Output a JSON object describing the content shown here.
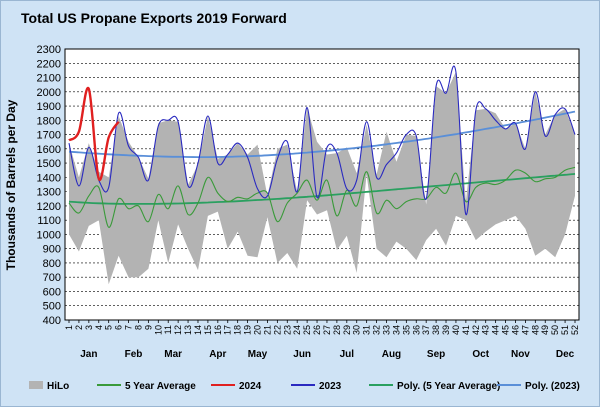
{
  "chart_data": {
    "type": "line",
    "title": "Total US Propane Exports 2019 Forward",
    "ylabel": "Thousands of Barrels per Day",
    "xlabel": "",
    "ylim": [
      400,
      2300
    ],
    "ystep": 100,
    "weeks": [
      1,
      2,
      3,
      4,
      5,
      6,
      7,
      8,
      9,
      10,
      11,
      12,
      13,
      14,
      15,
      16,
      17,
      18,
      19,
      20,
      21,
      22,
      23,
      24,
      25,
      26,
      27,
      28,
      29,
      30,
      31,
      32,
      33,
      34,
      35,
      36,
      37,
      38,
      39,
      40,
      41,
      42,
      43,
      44,
      45,
      46,
      47,
      48,
      49,
      50,
      51,
      52
    ],
    "months": [
      {
        "label": "Jan",
        "week": 3
      },
      {
        "label": "Feb",
        "week": 7.5
      },
      {
        "label": "Mar",
        "week": 11.5
      },
      {
        "label": "Apr",
        "week": 16
      },
      {
        "label": "May",
        "week": 20
      },
      {
        "label": "Jun",
        "week": 24.5
      },
      {
        "label": "Jul",
        "week": 29
      },
      {
        "label": "Aug",
        "week": 33.5
      },
      {
        "label": "Sep",
        "week": 38
      },
      {
        "label": "Oct",
        "week": 42.5
      },
      {
        "label": "Nov",
        "week": 46.5
      },
      {
        "label": "Dec",
        "week": 51
      }
    ],
    "hilo_high": [
      1640,
      1400,
      1640,
      1440,
      1400,
      1830,
      1650,
      1540,
      1390,
      1780,
      1800,
      1790,
      1350,
      1490,
      1830,
      1530,
      1560,
      1640,
      1560,
      1630,
      1270,
      1600,
      1630,
      1300,
      1890,
      1650,
      1560,
      1570,
      1610,
      1430,
      1770,
      1420,
      1720,
      1510,
      1700,
      1690,
      1210,
      2040,
      1990,
      2140,
      1230,
      1870,
      1880,
      1850,
      1740,
      1780,
      1600,
      2000,
      1700,
      1840,
      1880,
      1700
    ],
    "hilo_low": [
      1000,
      880,
      1060,
      1100,
      650,
      850,
      700,
      700,
      760,
      1100,
      800,
      1070,
      900,
      750,
      1130,
      1160,
      900,
      1020,
      850,
      840,
      1120,
      800,
      870,
      760,
      1240,
      1140,
      1170,
      890,
      990,
      730,
      1420,
      900,
      840,
      950,
      900,
      820,
      960,
      1040,
      920,
      1130,
      1100,
      960,
      1020,
      1070,
      1100,
      1130,
      1040,
      850,
      900,
      840,
      1000,
      1270
    ],
    "series": [
      {
        "name": "5 Year Average",
        "color": "#3a9a3a",
        "values": [
          1220,
          1150,
          1270,
          1330,
          1050,
          1250,
          1180,
          1200,
          1090,
          1280,
          1180,
          1340,
          1140,
          1220,
          1400,
          1290,
          1230,
          1260,
          1250,
          1290,
          1290,
          1090,
          1220,
          1290,
          1380,
          1240,
          1380,
          1130,
          1310,
          1200,
          1440,
          1150,
          1240,
          1180,
          1230,
          1250,
          1250,
          1330,
          1290,
          1430,
          1230,
          1330,
          1360,
          1350,
          1380,
          1450,
          1430,
          1370,
          1390,
          1400,
          1450,
          1470
        ]
      },
      {
        "name": "2024",
        "color": "#e02020",
        "values": [
          1660,
          1720,
          2020,
          1390,
          1680,
          1790
        ]
      },
      {
        "name": "2023",
        "color": "#2a2ac0",
        "values": [
          1640,
          1340,
          1610,
          1380,
          1330,
          1850,
          1620,
          1540,
          1380,
          1760,
          1800,
          1790,
          1340,
          1500,
          1830,
          1500,
          1560,
          1640,
          1540,
          1320,
          1270,
          1530,
          1650,
          1300,
          1890,
          1260,
          1610,
          1570,
          1320,
          1380,
          1790,
          1400,
          1490,
          1570,
          1700,
          1690,
          1250,
          2040,
          1990,
          2140,
          1140,
          1870,
          1880,
          1800,
          1740,
          1780,
          1600,
          2000,
          1690,
          1840,
          1880,
          1700
        ]
      },
      {
        "name": "Poly. (5 Year Average)",
        "color": "#2aa060",
        "values": [
          1230,
          1225,
          1221,
          1218,
          1216,
          1215,
          1214,
          1214,
          1214,
          1215,
          1216,
          1217,
          1219,
          1221,
          1224,
          1227,
          1230,
          1233,
          1237,
          1241,
          1245,
          1249,
          1254,
          1259,
          1264,
          1269,
          1274,
          1280,
          1286,
          1292,
          1298,
          1304,
          1310,
          1316,
          1322,
          1328,
          1334,
          1340,
          1346,
          1352,
          1358,
          1364,
          1370,
          1376,
          1382,
          1388,
          1394,
          1400,
          1406,
          1412,
          1418,
          1424
        ]
      },
      {
        "name": "Poly. (2023)",
        "color": "#5a8fd8",
        "values": [
          1580,
          1575,
          1570,
          1566,
          1562,
          1558,
          1555,
          1552,
          1549,
          1547,
          1545,
          1544,
          1543,
          1542,
          1542,
          1543,
          1544,
          1546,
          1548,
          1551,
          1555,
          1559,
          1563,
          1568,
          1574,
          1580,
          1586,
          1593,
          1600,
          1607,
          1615,
          1623,
          1632,
          1641,
          1650,
          1660,
          1670,
          1681,
          1692,
          1703,
          1715,
          1727,
          1740,
          1752,
          1765,
          1778,
          1792,
          1805,
          1819,
          1833,
          1847,
          1861
        ]
      }
    ],
    "legend": {
      "placement": "bottom",
      "items": [
        {
          "label": "HiLo",
          "kind": "area",
          "color": "#b3b3b3"
        },
        {
          "label": "5 Year Average",
          "kind": "line",
          "color": "#3a9a3a"
        },
        {
          "label": "2024",
          "kind": "line",
          "color": "#e02020"
        },
        {
          "label": "2023",
          "kind": "line",
          "color": "#2a2ac0"
        },
        {
          "label": "Poly. (5 Year Average)",
          "kind": "line",
          "color": "#2aa060"
        },
        {
          "label": "Poly. (2023)",
          "kind": "line",
          "color": "#5a8fd8"
        }
      ]
    },
    "colors": {
      "background": "#cfe3f5",
      "plot_background": "#ffffff",
      "grid": "#000000"
    }
  }
}
